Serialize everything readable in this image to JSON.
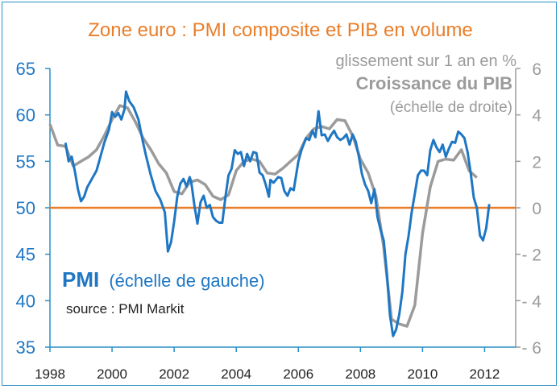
{
  "chart_data": {
    "type": "line",
    "title": "Zone euro : PMI composite et PIB en volume",
    "right_axis_unit": "glissement sur 1 an en %",
    "source": "source : PMI Markit",
    "baseline_pmi": 50,
    "xlim": [
      1998,
      2013
    ],
    "xticks": [
      1998,
      2000,
      2002,
      2004,
      2006,
      2008,
      2010,
      2012
    ],
    "xtick_labels": [
      "1998",
      "2000",
      "2002",
      "2004",
      "2006",
      "2008",
      "2010",
      "2012"
    ],
    "left_axis": {
      "ylim": [
        35,
        65
      ],
      "ticks": [
        35,
        40,
        45,
        50,
        55,
        60,
        65
      ],
      "tick_labels": [
        "35",
        "40",
        "45",
        "50",
        "55",
        "60",
        "65"
      ]
    },
    "right_axis": {
      "ylim": [
        -6,
        6
      ],
      "ticks": [
        -6,
        -4,
        -2,
        0,
        2,
        4,
        6
      ],
      "tick_labels": [
        "- 6",
        "- 4",
        "- 2",
        "0",
        "2",
        "4",
        "6"
      ]
    },
    "grid": false,
    "series": [
      {
        "name": "Croissance du PIB",
        "name_note": "(échelle de droite)",
        "axis": "right",
        "color": "#9b9b9b",
        "points": [
          [
            1998.0,
            3.6
          ],
          [
            1998.25,
            2.7
          ],
          [
            1998.5,
            2.65
          ],
          [
            1998.75,
            1.8
          ],
          [
            1999.0,
            2.0
          ],
          [
            1999.25,
            2.2
          ],
          [
            1999.5,
            2.5
          ],
          [
            1999.75,
            3.1
          ],
          [
            2000.0,
            3.8
          ],
          [
            2000.25,
            4.4
          ],
          [
            2000.5,
            4.3
          ],
          [
            2000.75,
            3.7
          ],
          [
            2001.0,
            3.0
          ],
          [
            2001.25,
            2.5
          ],
          [
            2001.5,
            1.9
          ],
          [
            2001.75,
            1.5
          ],
          [
            2002.0,
            0.7
          ],
          [
            2002.25,
            0.6
          ],
          [
            2002.5,
            1.1
          ],
          [
            2002.75,
            1.2
          ],
          [
            2003.0,
            1.0
          ],
          [
            2003.25,
            0.5
          ],
          [
            2003.5,
            0.35
          ],
          [
            2003.75,
            0.55
          ],
          [
            2004.0,
            1.6
          ],
          [
            2004.25,
            2.0
          ],
          [
            2004.5,
            2.1
          ],
          [
            2004.75,
            2.0
          ],
          [
            2005.0,
            1.5
          ],
          [
            2005.25,
            1.45
          ],
          [
            2005.5,
            1.7
          ],
          [
            2005.75,
            2.0
          ],
          [
            2006.0,
            2.3
          ],
          [
            2006.25,
            3.0
          ],
          [
            2006.5,
            3.4
          ],
          [
            2006.75,
            3.5
          ],
          [
            2007.0,
            3.4
          ],
          [
            2007.25,
            3.8
          ],
          [
            2007.5,
            3.75
          ],
          [
            2007.75,
            3.1
          ],
          [
            2008.0,
            2.1
          ],
          [
            2008.25,
            1.5
          ],
          [
            2008.5,
            0.5
          ],
          [
            2008.75,
            -1.7
          ],
          [
            2009.0,
            -4.8
          ],
          [
            2009.25,
            -5.0
          ],
          [
            2009.5,
            -5.1
          ],
          [
            2009.75,
            -4.2
          ],
          [
            2010.0,
            -1.1
          ],
          [
            2010.25,
            0.9
          ],
          [
            2010.5,
            2.0
          ],
          [
            2010.75,
            2.1
          ],
          [
            2011.0,
            2.05
          ],
          [
            2011.25,
            2.5
          ],
          [
            2011.5,
            1.6
          ],
          [
            2011.75,
            1.3
          ]
        ]
      },
      {
        "name": "PMI",
        "name_note": "(échelle de gauche)",
        "axis": "left",
        "color": "#1f77c4",
        "points": [
          [
            1998.5,
            57.0
          ],
          [
            1998.6,
            55.0
          ],
          [
            1998.7,
            55.5
          ],
          [
            1998.8,
            54.0
          ],
          [
            1998.9,
            52.0
          ],
          [
            1999.0,
            50.7
          ],
          [
            1999.1,
            51.2
          ],
          [
            1999.2,
            52.2
          ],
          [
            1999.35,
            53.1
          ],
          [
            1999.5,
            54.0
          ],
          [
            1999.6,
            55.2
          ],
          [
            1999.75,
            57.0
          ],
          [
            1999.9,
            58.4
          ],
          [
            2000.0,
            60.3
          ],
          [
            2000.1,
            59.8
          ],
          [
            2000.2,
            60.2
          ],
          [
            2000.3,
            59.5
          ],
          [
            2000.4,
            60.6
          ],
          [
            2000.45,
            62.5
          ],
          [
            2000.55,
            61.5
          ],
          [
            2000.7,
            60.8
          ],
          [
            2000.85,
            59.5
          ],
          [
            2001.0,
            57.0
          ],
          [
            2001.1,
            55.5
          ],
          [
            2001.25,
            53.5
          ],
          [
            2001.4,
            51.8
          ],
          [
            2001.55,
            50.9
          ],
          [
            2001.7,
            49.5
          ],
          [
            2001.8,
            45.3
          ],
          [
            2001.9,
            46.3
          ],
          [
            2002.0,
            48.5
          ],
          [
            2002.1,
            51.2
          ],
          [
            2002.2,
            52.6
          ],
          [
            2002.3,
            53.1
          ],
          [
            2002.4,
            52.3
          ],
          [
            2002.5,
            53.3
          ],
          [
            2002.55,
            52.8
          ],
          [
            2002.65,
            50.3
          ],
          [
            2002.75,
            48.3
          ],
          [
            2002.85,
            50.6
          ],
          [
            2002.95,
            51.3
          ],
          [
            2003.05,
            50.0
          ],
          [
            2003.15,
            50.3
          ],
          [
            2003.25,
            49.0
          ],
          [
            2003.35,
            48.6
          ],
          [
            2003.45,
            48.4
          ],
          [
            2003.55,
            48.4
          ],
          [
            2003.65,
            51.1
          ],
          [
            2003.75,
            53.5
          ],
          [
            2003.85,
            54.2
          ],
          [
            2003.95,
            56.2
          ],
          [
            2004.05,
            55.8
          ],
          [
            2004.15,
            56.0
          ],
          [
            2004.25,
            54.5
          ],
          [
            2004.35,
            55.8
          ],
          [
            2004.45,
            55.0
          ],
          [
            2004.55,
            56.0
          ],
          [
            2004.65,
            55.9
          ],
          [
            2004.75,
            53.8
          ],
          [
            2004.85,
            53.5
          ],
          [
            2004.95,
            52.5
          ],
          [
            2005.05,
            51.2
          ],
          [
            2005.1,
            53.0
          ],
          [
            2005.2,
            52.7
          ],
          [
            2005.35,
            53.3
          ],
          [
            2005.45,
            53.2
          ],
          [
            2005.55,
            51.8
          ],
          [
            2005.65,
            51.3
          ],
          [
            2005.75,
            52.1
          ],
          [
            2005.85,
            51.9
          ],
          [
            2006.0,
            55.0
          ],
          [
            2006.1,
            56.2
          ],
          [
            2006.25,
            57.5
          ],
          [
            2006.35,
            57.3
          ],
          [
            2006.45,
            58.3
          ],
          [
            2006.55,
            57.6
          ],
          [
            2006.65,
            60.4
          ],
          [
            2006.75,
            57.8
          ],
          [
            2006.85,
            57.9
          ],
          [
            2006.95,
            57.2
          ],
          [
            2007.05,
            57.8
          ],
          [
            2007.15,
            58.3
          ],
          [
            2007.25,
            57.6
          ],
          [
            2007.35,
            57.3
          ],
          [
            2007.45,
            57.5
          ],
          [
            2007.55,
            57.9
          ],
          [
            2007.65,
            56.8
          ],
          [
            2007.75,
            57.9
          ],
          [
            2007.85,
            57.1
          ],
          [
            2007.95,
            55.5
          ],
          [
            2008.05,
            53.6
          ],
          [
            2008.15,
            52.5
          ],
          [
            2008.25,
            51.8
          ],
          [
            2008.35,
            50.5
          ],
          [
            2008.45,
            52.0
          ],
          [
            2008.55,
            49.0
          ],
          [
            2008.65,
            47.6
          ],
          [
            2008.75,
            46.5
          ],
          [
            2008.85,
            43.0
          ],
          [
            2008.95,
            38.5
          ],
          [
            2009.05,
            36.2
          ],
          [
            2009.15,
            36.9
          ],
          [
            2009.25,
            38.5
          ],
          [
            2009.35,
            41.0
          ],
          [
            2009.45,
            45.0
          ],
          [
            2009.55,
            47.0
          ],
          [
            2009.65,
            49.5
          ],
          [
            2009.75,
            51.5
          ],
          [
            2009.85,
            53.5
          ],
          [
            2009.95,
            54.0
          ],
          [
            2010.05,
            54.0
          ],
          [
            2010.15,
            53.5
          ],
          [
            2010.25,
            56.2
          ],
          [
            2010.35,
            57.3
          ],
          [
            2010.45,
            56.5
          ],
          [
            2010.55,
            56.0
          ],
          [
            2010.65,
            56.8
          ],
          [
            2010.75,
            55.5
          ],
          [
            2010.85,
            56.4
          ],
          [
            2010.95,
            57.1
          ],
          [
            2011.05,
            57.0
          ],
          [
            2011.15,
            58.2
          ],
          [
            2011.25,
            57.9
          ],
          [
            2011.35,
            57.5
          ],
          [
            2011.45,
            56.0
          ],
          [
            2011.55,
            53.8
          ],
          [
            2011.65,
            51.1
          ],
          [
            2011.75,
            50.0
          ],
          [
            2011.85,
            47.0
          ],
          [
            2011.95,
            46.5
          ],
          [
            2012.05,
            47.8
          ],
          [
            2012.15,
            50.4
          ]
        ]
      }
    ]
  },
  "colors": {
    "title": "#e97e2a",
    "pmi": "#1f77c4",
    "gdp": "#9b9b9b",
    "baseline": "#e97e2a",
    "axis": "#2a8fc6",
    "frame": "#2a8fc6"
  }
}
